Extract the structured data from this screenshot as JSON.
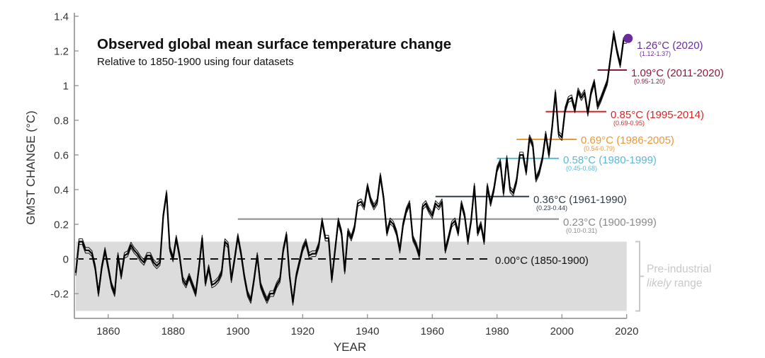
{
  "chart_data": {
    "type": "line",
    "title": "Observed global mean surface temperature change",
    "subtitle": "Relative to 1850-1900 using four datasets",
    "xlabel": "YEAR",
    "ylabel": "GMST CHANGE (°C)",
    "xlim": [
      1850,
      2020
    ],
    "ylim": [
      -0.3,
      1.4
    ],
    "xticks": [
      1860,
      1880,
      1900,
      1920,
      1940,
      1960,
      1980,
      2000,
      2020
    ],
    "yticks": [
      -0.2,
      0,
      0.2,
      0.4,
      0.6,
      0.8,
      1,
      1.2,
      1.4
    ],
    "ytick_labels": [
      "-0.2",
      "0",
      "0.2",
      "0.4",
      "0.6",
      "0.8",
      "1",
      "1.2",
      "1.4"
    ],
    "grid": false,
    "line_color": "#000000",
    "x_start": 1850,
    "series": [
      {
        "values": [
          -0.08,
          0.1,
          0.1,
          0.05,
          0.05,
          0.03,
          -0.05,
          -0.2,
          -0.05,
          0.05,
          -0.05,
          -0.15,
          -0.2,
          0.02,
          -0.1,
          0.02,
          0.03,
          0.08,
          0.05,
          0.03,
          0.0,
          -0.02,
          0.02,
          0.02,
          -0.02,
          -0.04,
          -0.02,
          0.25,
          0.38,
          0.06,
          0.0,
          0.12,
          0.02,
          -0.12,
          -0.15,
          -0.1,
          -0.15,
          -0.2,
          -0.05,
          0.12,
          -0.14,
          -0.05,
          -0.15,
          -0.14,
          -0.12,
          -0.08,
          0.1,
          0.08,
          -0.12,
          0.0,
          0.13,
          0.03,
          -0.1,
          -0.2,
          -0.24,
          -0.12,
          0.02,
          -0.15,
          -0.2,
          -0.24,
          -0.2,
          -0.2,
          -0.15,
          -0.12,
          0.05,
          0.14,
          -0.1,
          -0.25,
          -0.1,
          -0.02,
          0.06,
          0.1,
          0.02,
          0.03,
          0.03,
          0.08,
          0.22,
          0.12,
          0.12,
          -0.12,
          0.05,
          0.22,
          0.15,
          -0.07,
          0.16,
          0.12,
          0.18,
          0.32,
          0.33,
          0.3,
          0.42,
          0.34,
          0.3,
          0.33,
          0.48,
          0.35,
          0.15,
          0.22,
          0.2,
          0.15,
          0.05,
          0.2,
          0.28,
          0.32,
          0.12,
          0.08,
          0.02,
          0.3,
          0.32,
          0.28,
          0.25,
          0.32,
          0.3,
          0.33,
          0.05,
          0.12,
          0.2,
          0.22,
          0.15,
          0.32,
          0.25,
          0.1,
          0.22,
          0.42,
          0.15,
          0.2,
          0.1,
          0.42,
          0.32,
          0.4,
          0.52,
          0.56,
          0.38,
          0.58,
          0.4,
          0.38,
          0.45,
          0.6,
          0.6,
          0.5,
          0.7,
          0.66,
          0.46,
          0.5,
          0.58,
          0.72,
          0.6,
          0.76,
          0.96,
          0.72,
          0.7,
          0.86,
          0.92,
          0.93,
          0.86,
          0.97,
          0.93,
          0.96,
          0.84,
          0.96,
          1.02,
          0.88,
          0.92,
          0.97,
          1.02,
          1.16,
          1.3,
          1.2,
          1.12,
          1.26,
          1.26
        ]
      }
    ],
    "shaded_band": {
      "label_line1": "Pre-industrial",
      "label_italic": "likely",
      "label_rest": " range",
      "range": [
        -0.3,
        0.1
      ],
      "color": "#dcdcdc"
    },
    "highlight_point": {
      "x": 2020,
      "y": 1.26,
      "color": "#6a2c9c"
    },
    "period_means": [
      {
        "text": "1.26°C (2020)",
        "range": "(1.12-1.37)",
        "value": 1.26,
        "start": 2020,
        "end": 2020,
        "color": "#6a2c9c"
      },
      {
        "text": "1.09°C (2011-2020)",
        "range": "(0.95-1.20)",
        "value": 1.09,
        "start": 2011,
        "end": 2020,
        "color": "#8b1a3a"
      },
      {
        "text": "0.85°C (1995-2014)",
        "range": "(0.69-0.95)",
        "value": 0.85,
        "start": 1995,
        "end": 2014,
        "color": "#d62728"
      },
      {
        "text": "0.69°C (1986-2005)",
        "range": "(0.54-0.79)",
        "value": 0.69,
        "start": 1986,
        "end": 2005,
        "color": "#e8993a"
      },
      {
        "text": "0.58°C (1980-1999)",
        "range": "(0.45-0.68)",
        "value": 0.58,
        "start": 1980,
        "end": 1999,
        "color": "#5bb8d6"
      },
      {
        "text": "0.36°C (1961-1990)",
        "range": "(0.23-0.44)",
        "value": 0.36,
        "start": 1961,
        "end": 1990,
        "color": "#2f3b45"
      },
      {
        "text": "0.23°C (1900-1999)",
        "range": "(0.10-0.31)",
        "value": 0.23,
        "start": 1900,
        "end": 1999,
        "color": "#8a8a8a"
      },
      {
        "text": "0.00°C (1850-1900)",
        "range": "",
        "value": 0.0,
        "start": 1850,
        "end": 1900,
        "color": "#111111",
        "dashed": true
      }
    ]
  }
}
